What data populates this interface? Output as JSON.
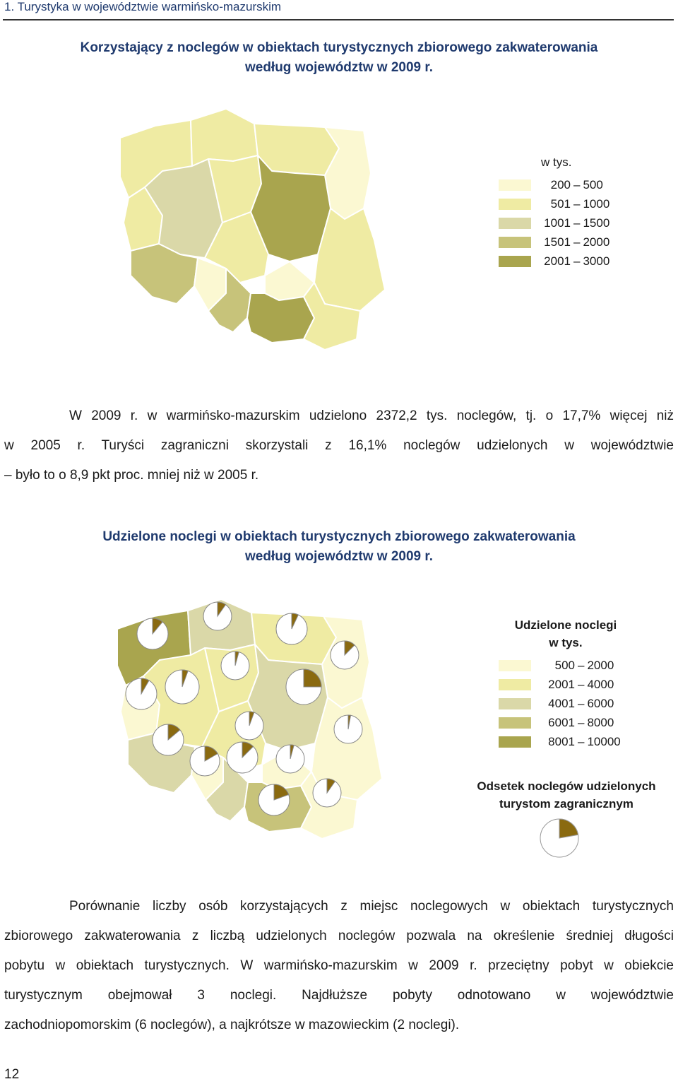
{
  "header": {
    "text": "1. Turystyka w województwie warmińsko-mazurskim"
  },
  "map1": {
    "title_line1": "Korzystający z noclegów w obiektach turystycznych zbiorowego zakwaterowania",
    "title_line2": "według województw w 2009 r.",
    "legend_title": "w tys.",
    "legend": [
      {
        "from": "200",
        "to": "500",
        "color": "#fbf8d2"
      },
      {
        "from": "501",
        "to": "1000",
        "color": "#efeba3"
      },
      {
        "from": "1001",
        "to": "1500",
        "color": "#dad8a8"
      },
      {
        "from": "1501",
        "to": "2000",
        "color": "#c7c37a"
      },
      {
        "from": "2001",
        "to": "3000",
        "color": "#a9a54e"
      }
    ]
  },
  "paragraph1": {
    "line1": "W 2009 r. w warmińsko-mazurskim udzielono 2372,2 tys. noclegów, tj. o 17,7% więcej niż",
    "line2": "w 2005 r. Turyści zagraniczni skorzystali z 16,1% noclegów udzielonych w województwie",
    "line3": "– było to o 8,9 pkt proc. mniej niż w 2005 r."
  },
  "map2": {
    "title_line1": "Udzielone noclegi w obiektach turystycznych zbiorowego zakwaterowania",
    "title_line2": "według województw w 2009 r.",
    "legend_title_line1": "Udzielone noclegi",
    "legend_title_line2": "w tys.",
    "legend": [
      {
        "from": "500",
        "to": "2000",
        "color": "#fbf8d2"
      },
      {
        "from": "2001",
        "to": "4000",
        "color": "#efeba3"
      },
      {
        "from": "4001",
        "to": "6000",
        "color": "#dad8a8"
      },
      {
        "from": "6001",
        "to": "8000",
        "color": "#c7c37a"
      },
      {
        "from": "8001",
        "to": "10000",
        "color": "#a9a54e"
      }
    ],
    "pie_legend_line1": "Odsetek noclegów udzielonych",
    "pie_legend_line2": "turystom zagranicznym",
    "pie_color": "#8a6a10"
  },
  "paragraph2": {
    "line1": "Porównanie liczby osób korzystających z miejsc noclegowych w obiektach turystycznych",
    "line2": "zbiorowego zakwaterowania z liczbą udzielonych noclegów pozwala na określenie średniej długości",
    "line3": "pobytu w obiektach turystycznych. W warmińsko-mazurskim w 2009 r. przeciętny pobyt w obiekcie",
    "line4": "turystycznym obejmował 3 noclegi. Najdłuższe pobyty odnotowano w województwie",
    "line5": "zachodniopomorskim (6 noclegów), a najkrótsze w mazowieckim (2 noclegi)."
  },
  "footer": {
    "page_number": "12"
  }
}
